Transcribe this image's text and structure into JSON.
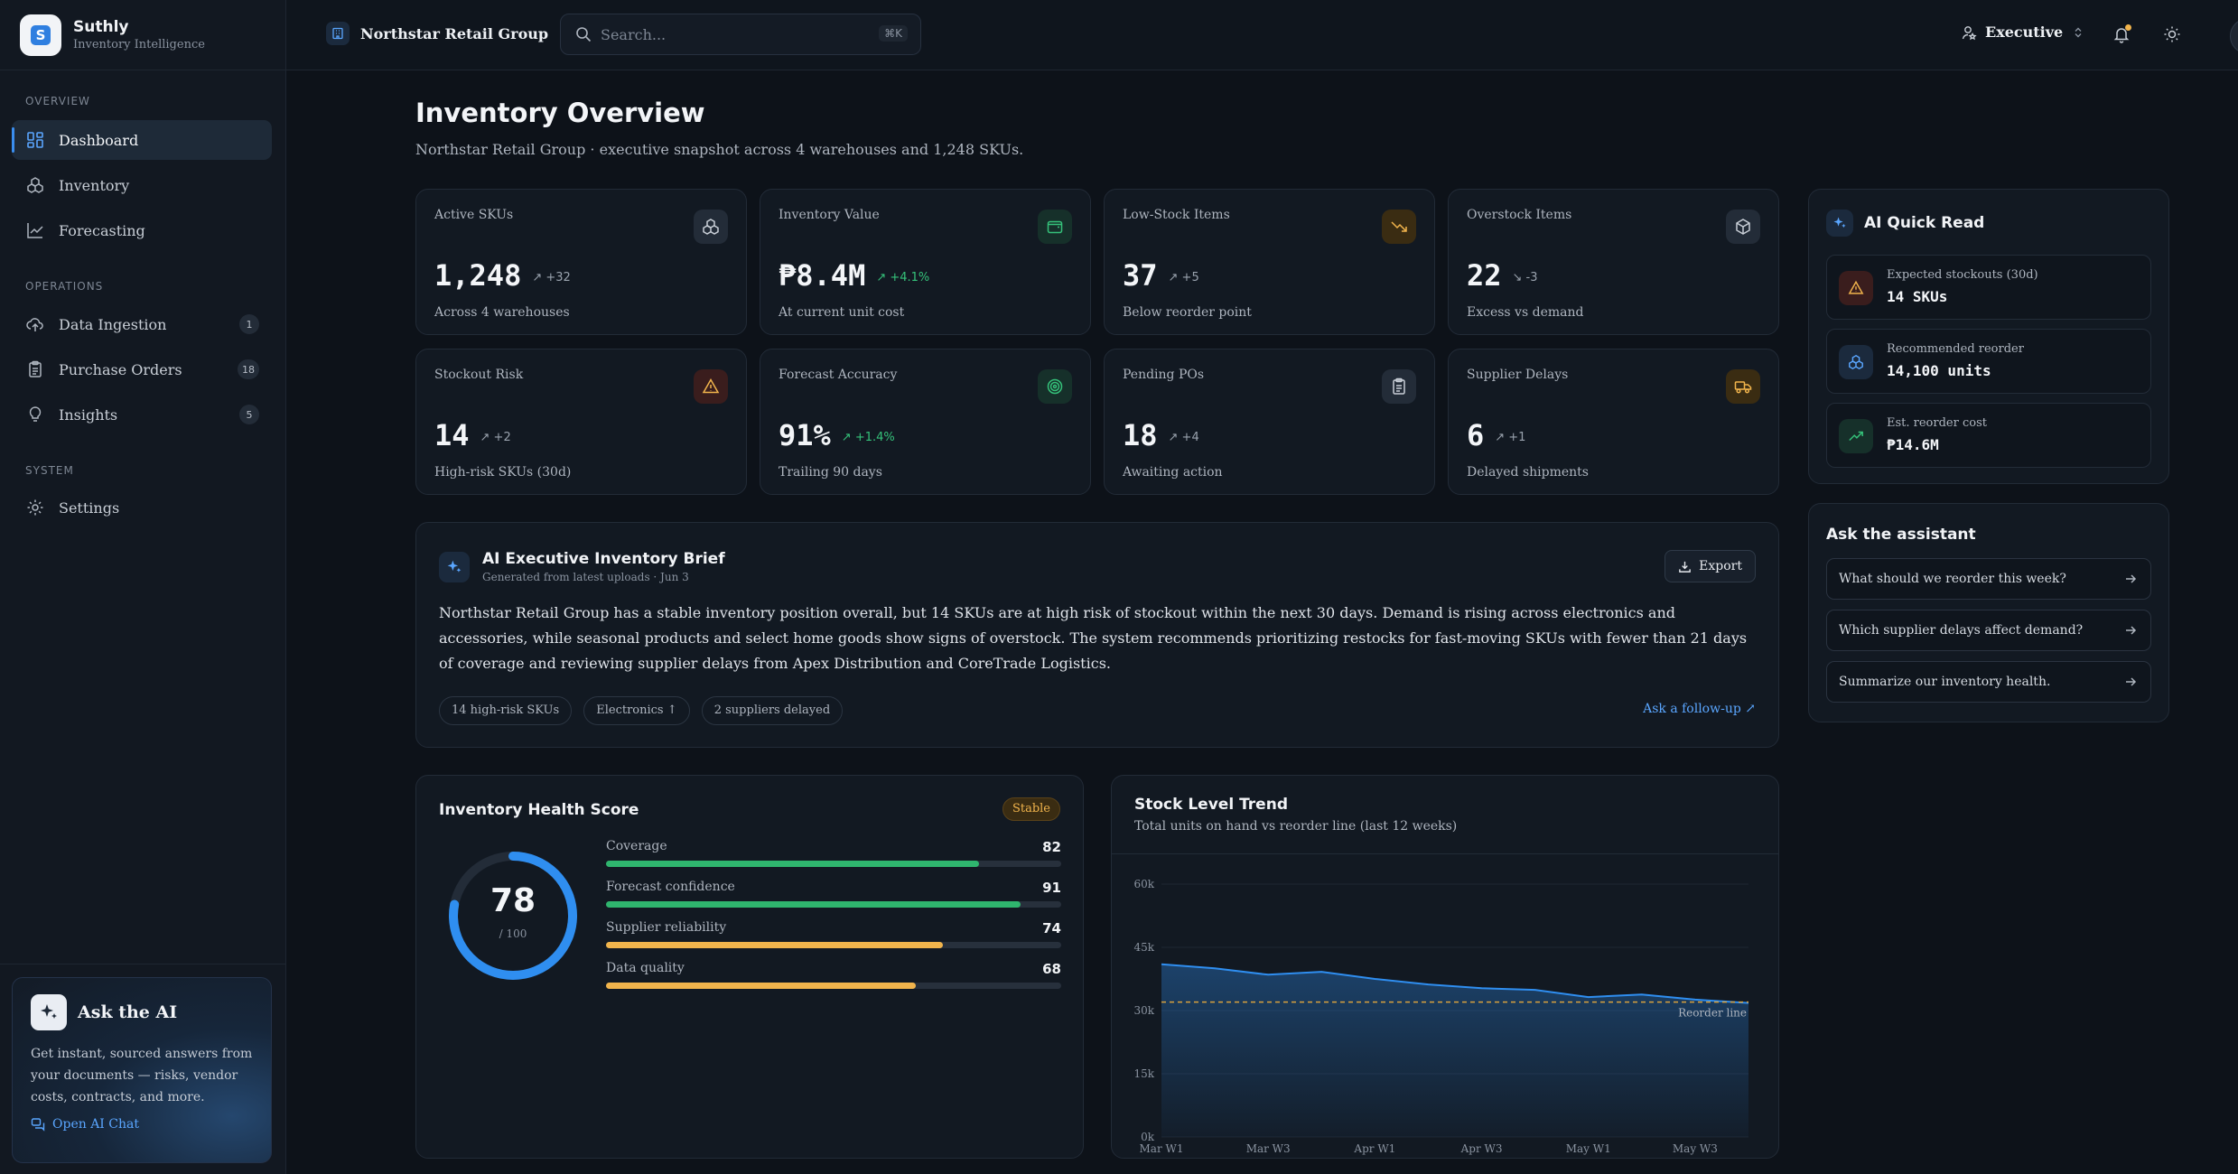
{
  "brand": {
    "name": "Suthly",
    "subtitle": "Inventory Intelligence"
  },
  "sidebar": {
    "sections": [
      {
        "title": "Overview"
      },
      {
        "title": "Operations"
      },
      {
        "title": "System"
      }
    ],
    "items": [
      {
        "label": "Dashboard",
        "icon": "grid-icon",
        "active": true
      },
      {
        "label": "Inventory",
        "icon": "boxes-icon"
      },
      {
        "label": "Forecasting",
        "icon": "line-chart-icon"
      },
      {
        "label": "Data Ingestion",
        "icon": "cloud-upload-icon",
        "badge": "1"
      },
      {
        "label": "Purchase Orders",
        "icon": "clipboard-icon",
        "badge": "18"
      },
      {
        "label": "Insights",
        "icon": "lightbulb-icon",
        "badge": "5"
      },
      {
        "label": "Settings",
        "icon": "gear-icon"
      }
    ],
    "ask_card": {
      "title": "Ask the AI",
      "description": "Get instant, sourced answers from your documents — risks, vendor costs, contracts, and more.",
      "link": "Open AI Chat"
    }
  },
  "topbar": {
    "org": "Northstar Retail Group",
    "search_placeholder": "Search...",
    "search_shortcut": "⌘K",
    "role": "Executive"
  },
  "page": {
    "title": "Inventory Overview",
    "subtitle": "Northstar Retail Group · executive snapshot across 4 warehouses and 1,248 SKUs."
  },
  "kpis": [
    {
      "label": "Active SKUs",
      "value": "1,248",
      "delta": "↗ +32",
      "delta_color": "gray",
      "sub": "Across 4 warehouses",
      "icon": "boxes-icon",
      "icon_color": "#c9cfd7",
      "icon_bg": "#232c38"
    },
    {
      "label": "Inventory Value",
      "value": "₱8.4M",
      "delta": "↗ +4.1%",
      "delta_color": "green",
      "sub": "At current unit cost",
      "icon": "wallet-icon",
      "icon_color": "#35c27a",
      "icon_bg": "#16302a"
    },
    {
      "label": "Low-Stock Items",
      "value": "37",
      "delta": "↗ +5",
      "delta_color": "gray",
      "sub": "Below reorder point",
      "icon": "trend-down-icon",
      "icon_color": "#f1b44c",
      "icon_bg": "#3a2c12"
    },
    {
      "label": "Overstock Items",
      "value": "22",
      "delta": "↘ -3",
      "delta_color": "gray",
      "sub": "Excess vs demand",
      "icon": "package-icon",
      "icon_color": "#c9cfd7",
      "icon_bg": "#232c38"
    },
    {
      "label": "Stockout Risk",
      "value": "14",
      "delta": "↗ +2",
      "delta_color": "gray",
      "sub": "High-risk SKUs (30d)",
      "icon": "warning-icon",
      "icon_color": "#f1b44c",
      "icon_bg": "#3a1d1d"
    },
    {
      "label": "Forecast Accuracy",
      "value": "91%",
      "delta": "↗ +1.4%",
      "delta_color": "green",
      "sub": "Trailing 90 days",
      "icon": "target-icon",
      "icon_color": "#35c27a",
      "icon_bg": "#16302a"
    },
    {
      "label": "Pending POs",
      "value": "18",
      "delta": "↗ +4",
      "delta_color": "gray",
      "sub": "Awaiting action",
      "icon": "clipboard-icon",
      "icon_color": "#c9cfd7",
      "icon_bg": "#232c38"
    },
    {
      "label": "Supplier Delays",
      "value": "6",
      "delta": "↗ +1",
      "delta_color": "gray",
      "sub": "Delayed shipments",
      "icon": "truck-icon",
      "icon_color": "#f1b44c",
      "icon_bg": "#3a2c12"
    }
  ],
  "brief": {
    "title": "AI Executive Inventory Brief",
    "meta": "Generated from latest uploads · Jun 3",
    "export_label": "Export",
    "body": "Northstar Retail Group has a stable inventory position overall, but 14 SKUs are at high risk of stockout within the next 30 days. Demand is rising across electronics and accessories, while seasonal products and select home goods show signs of overstock. The system recommends prioritizing restocks for fast-moving SKUs with fewer than 21 days of coverage and reviewing supplier delays from Apex Distribution and CoreTrade Logistics.",
    "chips": [
      "14 high-risk SKUs",
      "Electronics ↑",
      "2 suppliers delayed"
    ],
    "followup": "Ask a follow-up ↗"
  },
  "quick_read": {
    "title": "AI Quick Read",
    "items": [
      {
        "label": "Expected stockouts (30d)",
        "value": "14 SKUs",
        "icon": "warning-icon",
        "icon_color": "#f1b44c",
        "icon_bg": "#3a1d1d"
      },
      {
        "label": "Recommended reorder",
        "value": "14,100 units",
        "icon": "boxes-icon",
        "icon_color": "#5aa6ff",
        "icon_bg": "#1b2a3d"
      },
      {
        "label": "Est. reorder cost",
        "value": "₱14.6M",
        "icon": "trend-up-icon",
        "icon_color": "#35c27a",
        "icon_bg": "#16302a"
      }
    ]
  },
  "assistant": {
    "title": "Ask the assistant",
    "questions": [
      "What should we reorder this week?",
      "Which supplier delays affect demand?",
      "Summarize our inventory health."
    ]
  },
  "health": {
    "title": "Inventory Health Score",
    "status": "Stable",
    "score": "78",
    "score_value": 78,
    "score_max": "/ 100",
    "metrics": [
      {
        "label": "Coverage",
        "value": "82",
        "fill": 82,
        "color": "#2fb56e"
      },
      {
        "label": "Forecast confidence",
        "value": "91",
        "fill": 91,
        "color": "#2fb56e"
      },
      {
        "label": "Supplier reliability",
        "value": "74",
        "fill": 74,
        "color": "#f1b44c"
      },
      {
        "label": "Data quality",
        "value": "68",
        "fill": 68,
        "color": "#f1b44c"
      }
    ]
  },
  "chart_data": {
    "type": "area",
    "title": "Stock Level Trend",
    "subtitle": "Total units on hand vs reorder line (last 12 weeks)",
    "x": [
      "Mar W1",
      "Mar W2",
      "Mar W3",
      "Mar W4",
      "Apr W1",
      "Apr W2",
      "Apr W3",
      "Apr W4",
      "May W1",
      "May W2",
      "May W3",
      "May W4"
    ],
    "tick_labels": [
      "Mar W1",
      "Mar W3",
      "Apr W1",
      "Apr W3",
      "May W1",
      "May W3"
    ],
    "series": [
      {
        "values": [
          41000,
          40000,
          38500,
          39200,
          37500,
          36200,
          35300,
          34900,
          33200,
          33800,
          32600,
          31800
        ]
      }
    ],
    "reorder_line": 32000,
    "reorder_label": "Reorder line",
    "yticks": [
      "0k",
      "15k",
      "30k",
      "45k",
      "60k"
    ],
    "ylim": [
      0,
      60000
    ],
    "grid": true
  }
}
